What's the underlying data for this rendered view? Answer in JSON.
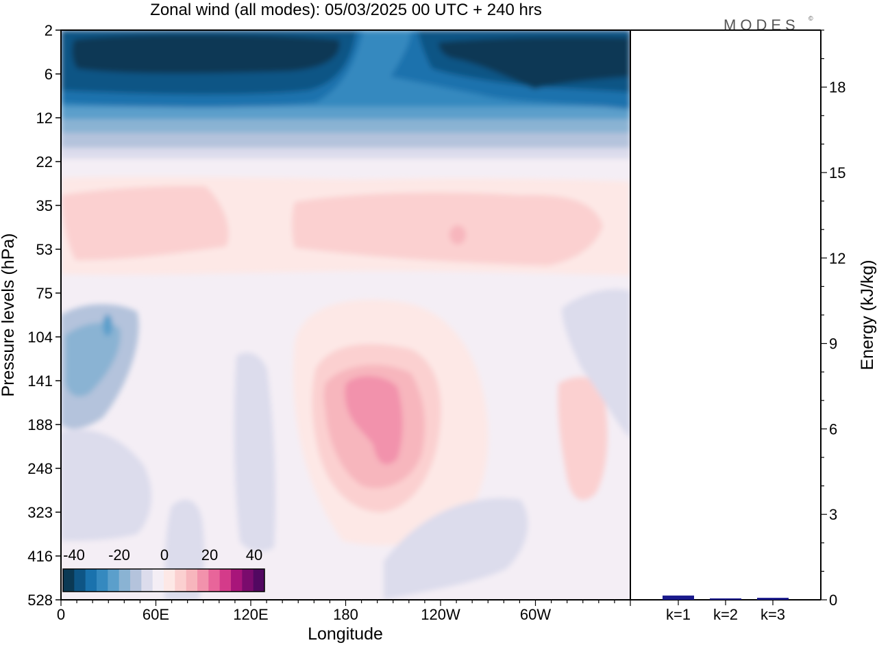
{
  "title": "Zonal wind (all modes):  05/03/2025  00 UTC  + 240 hrs",
  "logo": "MODES",
  "logo_mark": "©",
  "chart_data": [
    {
      "type": "heatmap",
      "xlabel": "Longitude",
      "ylabel": "Pressure levels (hPa)",
      "x_ticks": [
        "0",
        "60E",
        "120E",
        "180",
        "120W",
        "60W"
      ],
      "y_ticks": [
        "2",
        "6",
        "12",
        "22",
        "35",
        "53",
        "75",
        "104",
        "141",
        "188",
        "248",
        "323",
        "416",
        "528"
      ],
      "colorbar": {
        "tick_labels": [
          "-40",
          "-20",
          "0",
          "20",
          "40"
        ],
        "colors": [
          "#0b3954",
          "#0e5585",
          "#1a72ad",
          "#3589bf",
          "#5b9fcb",
          "#8ab3d3",
          "#b4c3dc",
          "#dcdcec",
          "#f4eef5",
          "#fde8e6",
          "#fbd0d0",
          "#f7b6bd",
          "#f292ac",
          "#e8659a",
          "#d43b8a",
          "#a8157a",
          "#7a0b6d",
          "#520861"
        ]
      },
      "field_features": [
        {
          "description": "strong easterlies",
          "lon": 50,
          "level": 4,
          "value": -40
        },
        {
          "description": "strong easterlies",
          "lon": 300,
          "level": 5,
          "value": -40
        },
        {
          "description": "westerly maximum",
          "lon": 195,
          "level": 170,
          "value": 20
        }
      ],
      "grid": false
    },
    {
      "type": "bar",
      "ylabel": "Energy (kJ/kg)",
      "categories": [
        "k=1",
        "k=2",
        "k=3"
      ],
      "values": [
        0.15,
        0.05,
        0.07
      ],
      "ylim": [
        0,
        20
      ],
      "y_ticks": [
        "0",
        "3",
        "6",
        "9",
        "12",
        "15",
        "18"
      ],
      "bar_color": "#1a1a8c"
    }
  ]
}
